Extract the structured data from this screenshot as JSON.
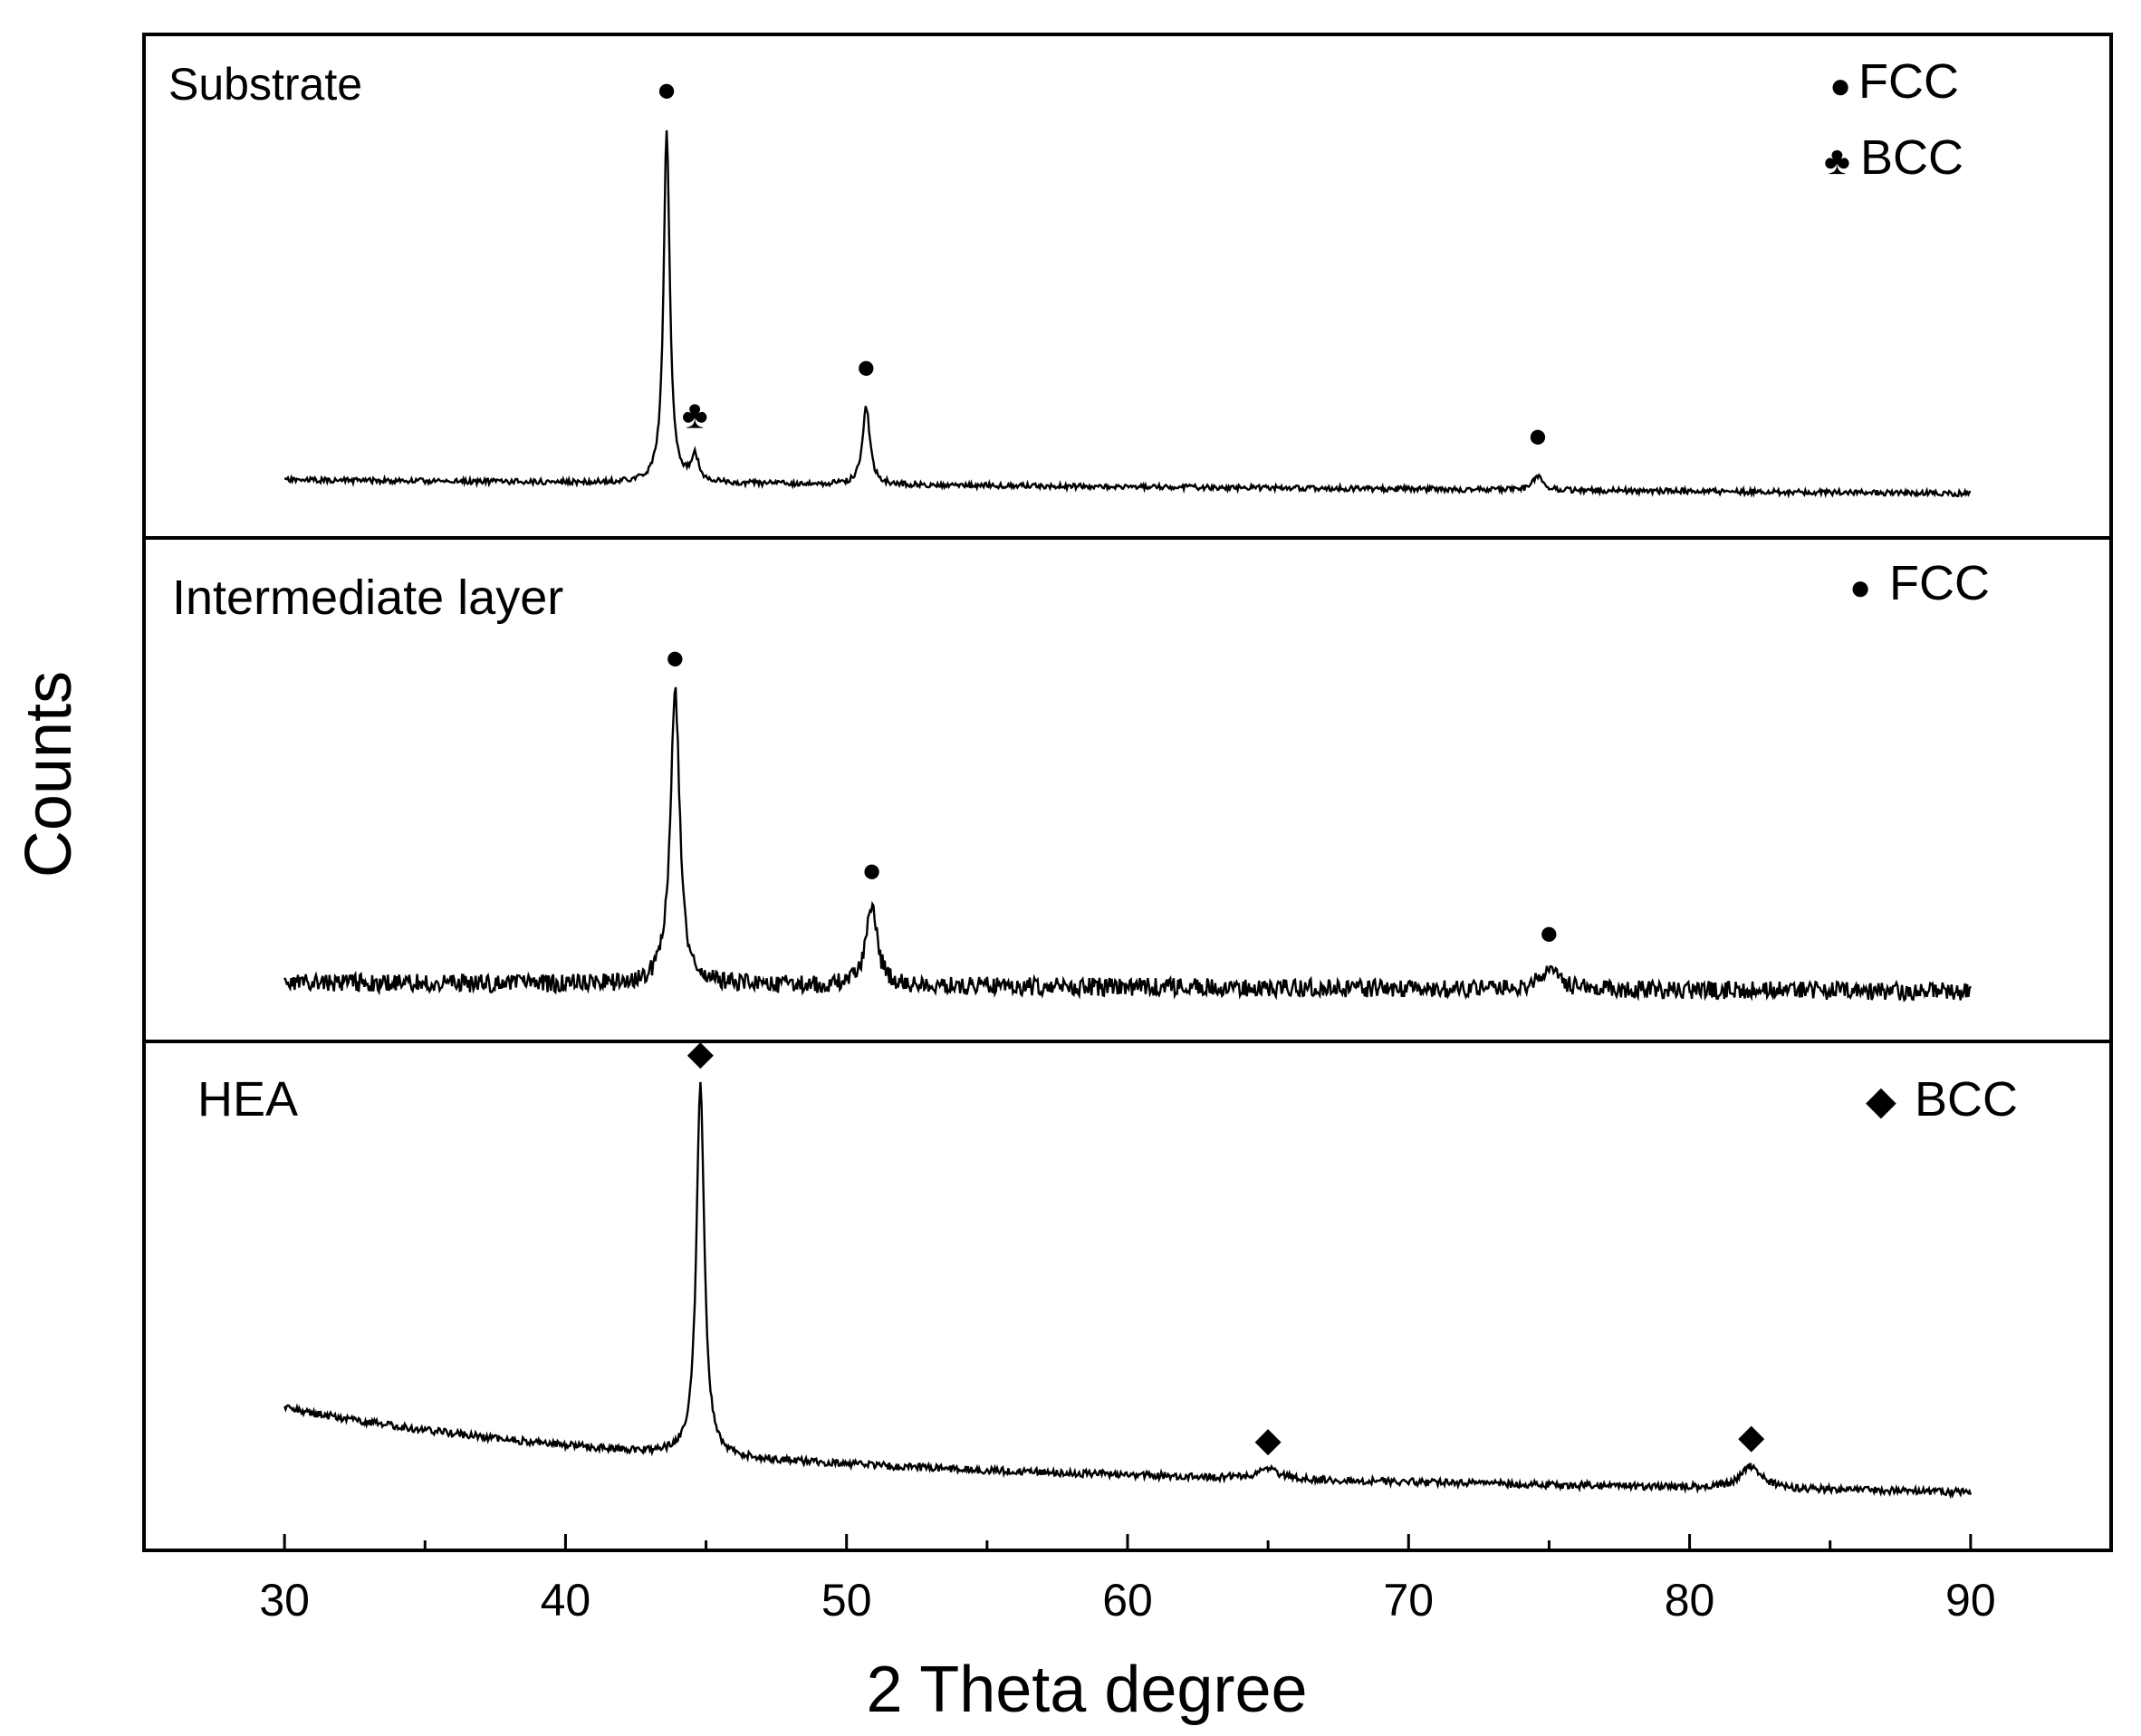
{
  "chart_data": {
    "type": "line",
    "xlabel": "2 Theta degree",
    "ylabel": "Counts",
    "xlim": [
      25,
      95
    ],
    "x_ticks": [
      30,
      40,
      50,
      60,
      70,
      80,
      90
    ],
    "x_tick_labels": [
      "30",
      "40",
      "50",
      "60",
      "70",
      "80",
      "90"
    ],
    "grid": false,
    "panels": [
      {
        "label": "Substrate",
        "legend": [
          {
            "symbol": "●",
            "text": "FCC"
          },
          {
            "symbol": "♣",
            "text": "BCC"
          }
        ],
        "peaks": [
          {
            "two_theta": 43.6,
            "height": 1.0,
            "width": 0.13,
            "phase": "FCC",
            "marker": "●"
          },
          {
            "two_theta": 44.6,
            "height": 0.075,
            "width": 0.16,
            "phase": "BCC",
            "marker": "♣"
          },
          {
            "two_theta": 50.7,
            "height": 0.22,
            "width": 0.16,
            "phase": "FCC",
            "marker": "●"
          },
          {
            "two_theta": 74.6,
            "height": 0.04,
            "width": 0.2,
            "phase": "FCC",
            "marker": "●"
          }
        ]
      },
      {
        "label": "Intermediate layer",
        "legend": [
          {
            "symbol": "●",
            "text": "FCC"
          }
        ],
        "peaks": [
          {
            "two_theta": 43.9,
            "height": 1.0,
            "width": 0.2,
            "phase": "FCC",
            "marker": "●"
          },
          {
            "two_theta": 50.9,
            "height": 0.28,
            "width": 0.23,
            "phase": "FCC",
            "marker": "●"
          },
          {
            "two_theta": 75.0,
            "height": 0.08,
            "width": 0.35,
            "phase": "FCC",
            "marker": "●"
          }
        ]
      },
      {
        "label": "HEA",
        "legend": [
          {
            "symbol": "◆",
            "text": "BCC"
          }
        ],
        "peaks": [
          {
            "two_theta": 44.8,
            "height": 1.0,
            "width": 0.17,
            "phase": "BCC",
            "marker": "◆"
          },
          {
            "two_theta": 65.0,
            "height": 0.025,
            "width": 0.5,
            "phase": "BCC",
            "marker": "◆"
          },
          {
            "two_theta": 82.2,
            "height": 0.06,
            "width": 0.45,
            "phase": "BCC",
            "marker": "◆"
          }
        ]
      }
    ]
  }
}
